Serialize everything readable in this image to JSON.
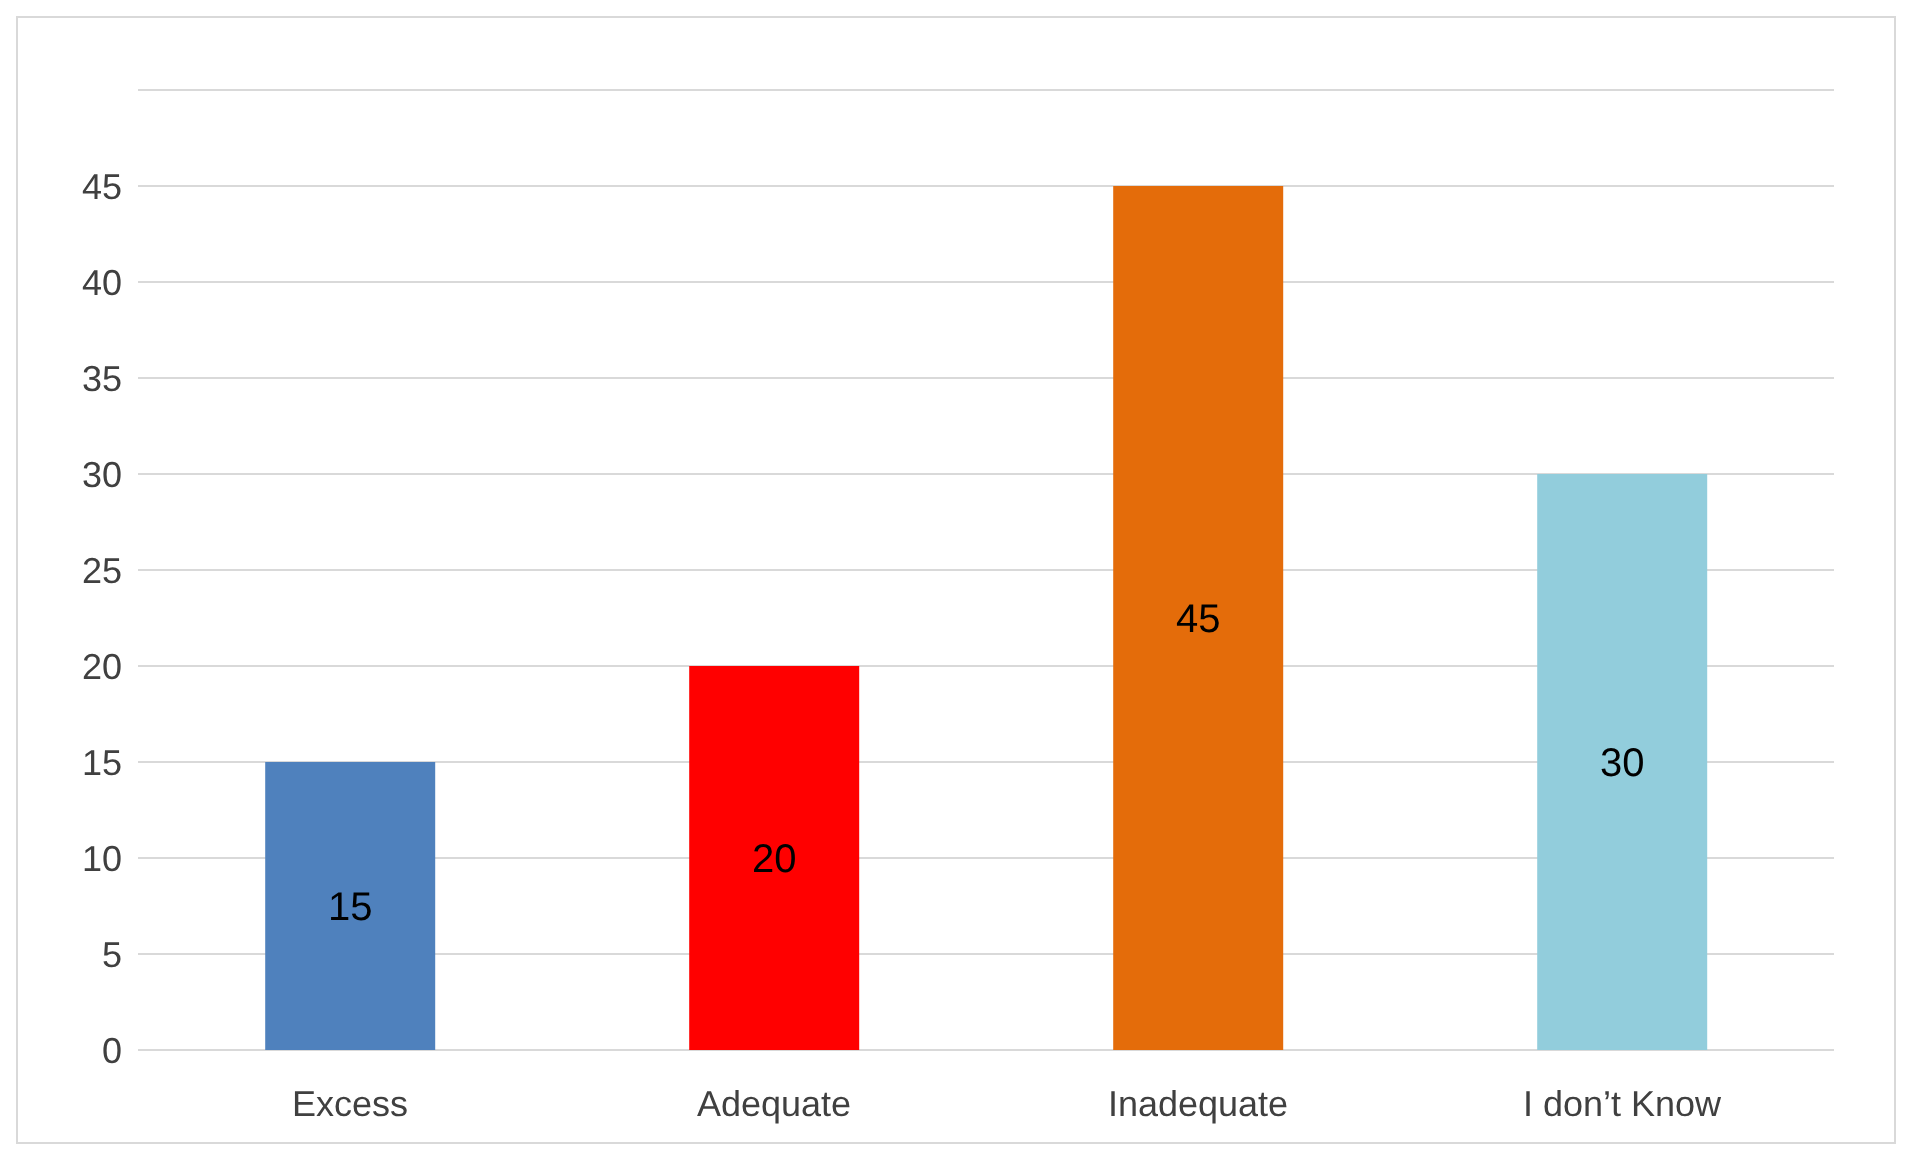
{
  "chart_data": {
    "type": "bar",
    "categories": [
      "Excess",
      "Adequate",
      "Inadequate",
      "I don’t Know"
    ],
    "values": [
      15,
      20,
      45,
      30
    ],
    "colors": [
      "#4f81bd",
      "#ff0000",
      "#e46c0a",
      "#92cddc"
    ],
    "ylim": [
      0,
      50
    ],
    "yticks": [
      0,
      5,
      10,
      15,
      20,
      25,
      30,
      35,
      40,
      45,
      {
        "value": 50,
        "label": null
      }
    ],
    "grid": "y",
    "data_labels": true
  }
}
